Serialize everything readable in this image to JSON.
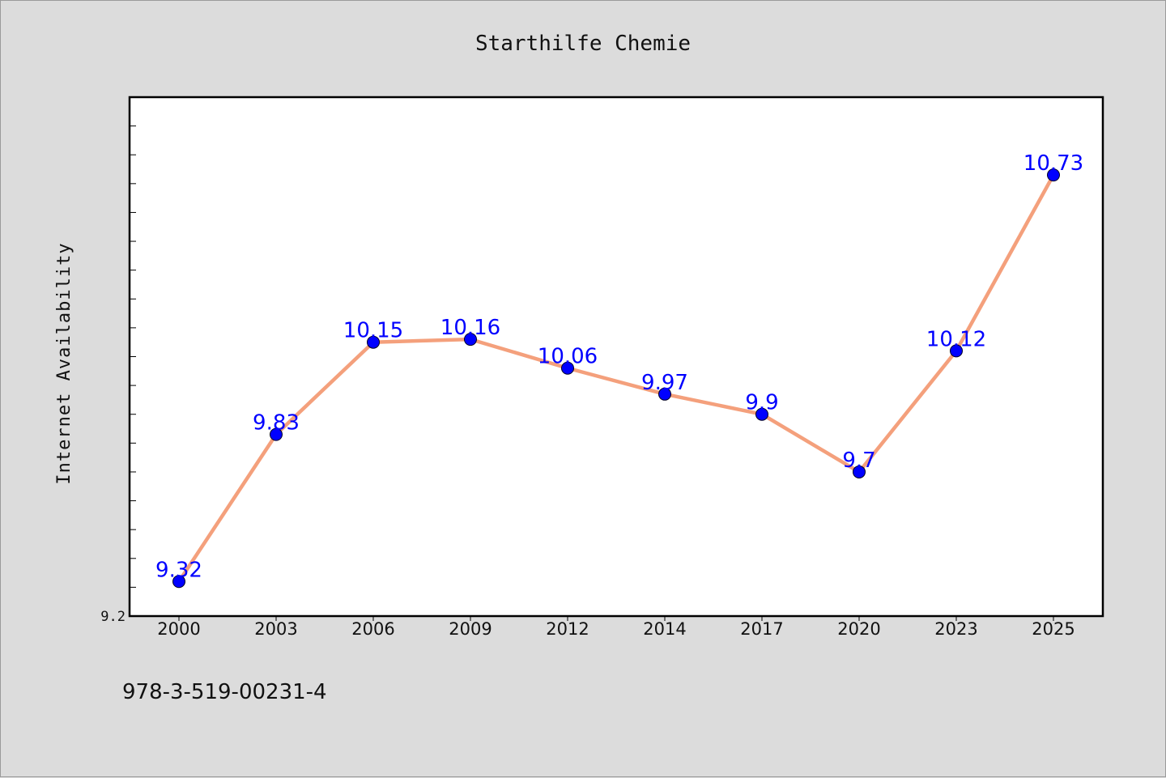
{
  "chart_data": {
    "type": "line",
    "title": "Starthilfe Chemie",
    "xlabel": "",
    "ylabel": "Internet Availability",
    "categories": [
      "2000",
      "2003",
      "2006",
      "2009",
      "2012",
      "2014",
      "2017",
      "2020",
      "2023",
      "2025"
    ],
    "series": [
      {
        "values": [
          9.32,
          9.83,
          10.15,
          10.16,
          10.06,
          9.97,
          9.9,
          9.7,
          10.12,
          10.73
        ]
      }
    ],
    "data_labels": [
      "9.32",
      "9.83",
      "10.15",
      "10.16",
      "10.06",
      "9.97",
      "9.9",
      "9.7",
      "10.12",
      "10.73"
    ],
    "y_tick_labels": [
      "9.2"
    ],
    "ylim": [
      9.2,
      11.0
    ],
    "grid": false,
    "legend": "none",
    "line_color": "#f4a07c",
    "marker_color": "#0000ff"
  },
  "footer": {
    "isbn": "978-3-519-00231-4"
  }
}
